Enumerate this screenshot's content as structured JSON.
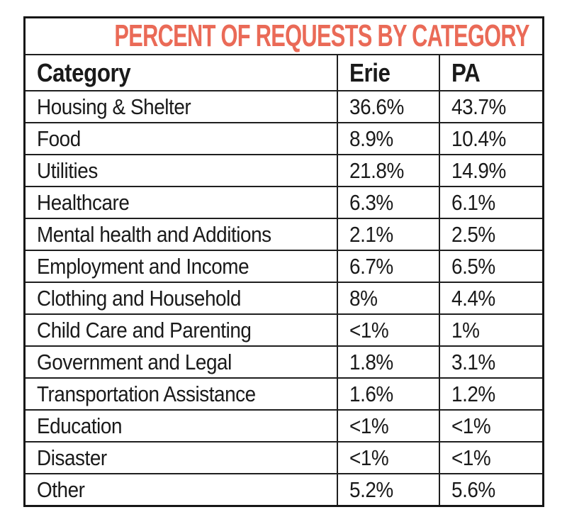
{
  "chart_data": {
    "type": "table",
    "title": "PERCENT OF REQUESTS BY CATEGORY",
    "columns": [
      "Category",
      "Erie",
      "PA"
    ],
    "rows": [
      [
        "Housing & Shelter",
        "36.6%",
        "43.7%"
      ],
      [
        "Food",
        "8.9%",
        "10.4%"
      ],
      [
        "Utilities",
        "21.8%",
        "14.9%"
      ],
      [
        "Healthcare",
        "6.3%",
        "6.1%"
      ],
      [
        "Mental health and Additions",
        "2.1%",
        "2.5%"
      ],
      [
        "Employment and Income",
        "6.7%",
        "6.5%"
      ],
      [
        "Clothing and Household",
        "8%",
        "4.4%"
      ],
      [
        "Child Care and Parenting",
        "<1%",
        "1%"
      ],
      [
        "Government and Legal",
        "1.8%",
        "3.1%"
      ],
      [
        "Transportation Assistance",
        "1.6%",
        "1.2%"
      ],
      [
        "Education",
        "<1%",
        "<1%"
      ],
      [
        "Disaster",
        "<1%",
        "<1%"
      ],
      [
        "Other",
        "5.2%",
        "5.6%"
      ]
    ],
    "layout": {
      "grid": true,
      "header_row": true,
      "title_position": "top-center"
    }
  },
  "colors": {
    "title": "#ea6a57",
    "text": "#1a1a1a",
    "border": "#1f1f1f",
    "background": "#ffffff"
  }
}
